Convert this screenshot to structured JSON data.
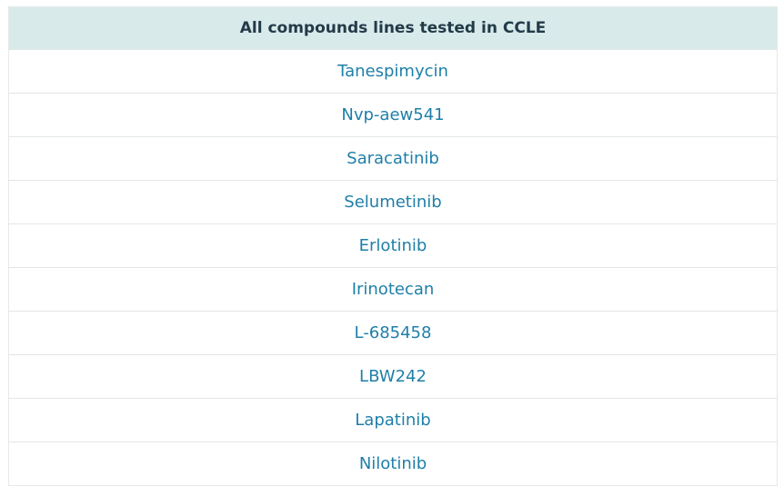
{
  "table": {
    "header": "All compounds lines tested in CCLE",
    "rows": [
      "Tanespimycin",
      "Nvp-aew541",
      "Saracatinib",
      "Selumetinib",
      "Erlotinib",
      "Irinotecan",
      "L-685458",
      "LBW242",
      "Lapatinib",
      "Nilotinib"
    ]
  },
  "colors": {
    "header_bg": "#d8eaea",
    "header_text": "#223b49",
    "link": "#1f7fa8",
    "border": "#e2e6e7"
  }
}
